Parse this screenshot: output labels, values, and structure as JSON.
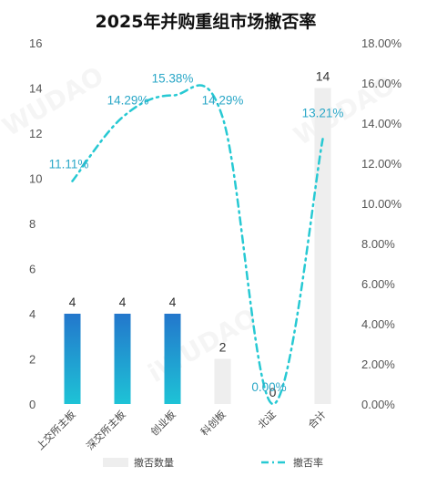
{
  "chart_data": {
    "type": "bar+line",
    "title": "2025年并购重组市场撤否率",
    "categories": [
      "上交所主板",
      "深交所主板",
      "创业板",
      "科创板",
      "北证",
      "合计"
    ],
    "series": [
      {
        "name": "撤否数量",
        "type": "bar",
        "axis": "left",
        "values": [
          4,
          4,
          4,
          2,
          0,
          14
        ],
        "labels": [
          "4",
          "4",
          "4",
          "2",
          "0",
          "14"
        ]
      },
      {
        "name": "撤否率",
        "type": "line",
        "axis": "right",
        "values": [
          11.11,
          14.29,
          15.38,
          14.29,
          0.0,
          13.21
        ],
        "labels": [
          "11.11%",
          "14.29%",
          "15.38%",
          "14.29%",
          "0.00%",
          "13.21%"
        ]
      }
    ],
    "y_left": {
      "min": 0,
      "max": 16,
      "ticks": [
        "0",
        "2",
        "4",
        "6",
        "8",
        "10",
        "12",
        "14",
        "16"
      ]
    },
    "y_right": {
      "min": 0,
      "max": 18,
      "ticks": [
        "0.00%",
        "2.00%",
        "4.00%",
        "6.00%",
        "8.00%",
        "10.00%",
        "12.00%",
        "14.00%",
        "16.00%",
        "18.00%"
      ]
    },
    "grid": false,
    "legend_position": "bottom",
    "colors": {
      "bar_blue_top": "#2377cc",
      "bar_blue_bottom": "#1ec3d6",
      "bar_gray": "#eeeeee",
      "line": "#27c9d3",
      "label_rate": "#2aa7c7"
    }
  }
}
